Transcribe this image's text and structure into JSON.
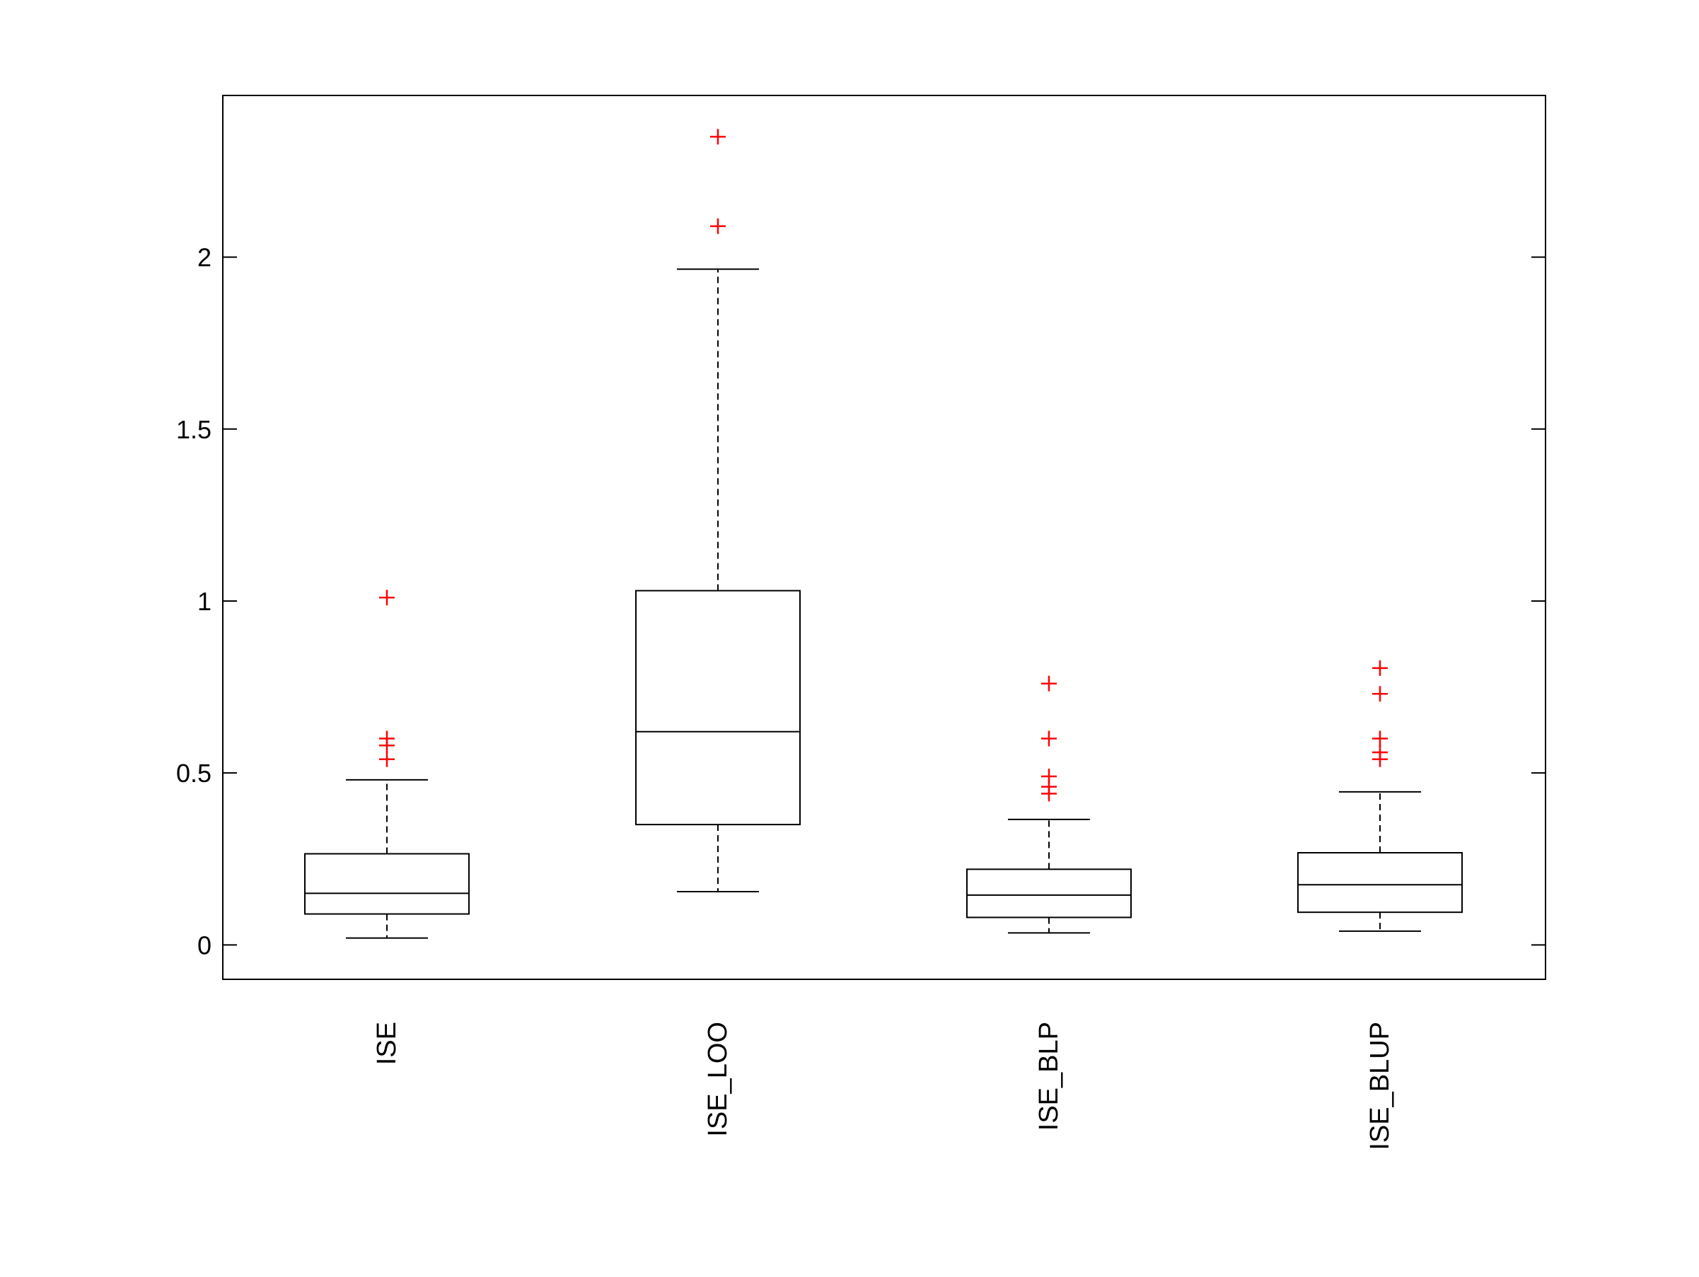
{
  "chart_data": {
    "type": "boxplot",
    "title": "",
    "xlabel": "",
    "ylabel": "",
    "ylim": [
      -0.1,
      2.47
    ],
    "yticks": [
      0,
      0.5,
      1,
      1.5,
      2
    ],
    "ytick_labels": [
      "0",
      "0.5",
      "1",
      "1.5",
      "2"
    ],
    "grid": false,
    "categories": [
      "ISE",
      "ISE_LOO",
      "ISE_BLP",
      "ISE_BLUP"
    ],
    "boxes": [
      {
        "name": "ISE",
        "whisker_low": 0.02,
        "q1": 0.09,
        "median": 0.15,
        "q3": 0.265,
        "whisker_high": 0.48,
        "outliers": [
          0.54,
          0.58,
          0.6,
          1.01
        ]
      },
      {
        "name": "ISE_LOO",
        "whisker_low": 0.155,
        "q1": 0.35,
        "median": 0.62,
        "q3": 1.03,
        "whisker_high": 1.965,
        "outliers": [
          2.09,
          2.35
        ]
      },
      {
        "name": "ISE_BLP",
        "whisker_low": 0.035,
        "q1": 0.08,
        "median": 0.145,
        "q3": 0.22,
        "whisker_high": 0.365,
        "outliers": [
          0.44,
          0.46,
          0.49,
          0.6,
          0.76
        ]
      },
      {
        "name": "ISE_BLUP",
        "whisker_low": 0.04,
        "q1": 0.095,
        "median": 0.175,
        "q3": 0.268,
        "whisker_high": 0.445,
        "outliers": [
          0.54,
          0.56,
          0.6,
          0.73,
          0.805
        ]
      }
    ],
    "colors": {
      "box": "#000000",
      "outlier": "#ff0000",
      "axes": "#000000",
      "background": "#ffffff"
    }
  }
}
